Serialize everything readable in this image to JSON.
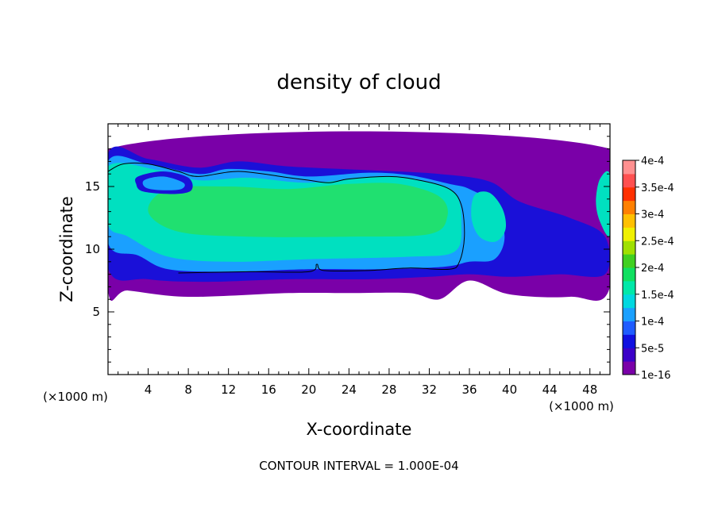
{
  "chart_data": {
    "type": "heatmap",
    "title": "density of cloud",
    "xlabel": "X-coordinate",
    "ylabel": "Z-coordinate",
    "x_unit_label": "(×1000 m)",
    "y_unit_label": "(×1000 m)",
    "xlim": [
      0,
      50
    ],
    "ylim": [
      0,
      20
    ],
    "x_ticks": [
      4,
      8,
      12,
      16,
      20,
      24,
      28,
      32,
      36,
      40,
      44,
      48
    ],
    "y_ticks": [
      5,
      10,
      15
    ],
    "footer": "CONTOUR INTERVAL = 1.000E-04",
    "colorbar": {
      "labels": [
        {
          "text": "4e-4",
          "value": 0.0004
        },
        {
          "text": "3.5e-4",
          "value": 0.00035
        },
        {
          "text": "3e-4",
          "value": 0.0003
        },
        {
          "text": "2.5e-4",
          "value": 0.00025
        },
        {
          "text": "2e-4",
          "value": 0.0002
        },
        {
          "text": "1.5e-4",
          "value": 0.00015
        },
        {
          "text": "1e-4",
          "value": 0.0001
        },
        {
          "text": "5e-5",
          "value": 5e-05
        },
        {
          "text": "1e-16",
          "value": 1e-16
        }
      ],
      "colors": [
        "#7a00a8",
        "#3b00c8",
        "#1010e0",
        "#1f5cff",
        "#1aa0ff",
        "#00d8e0",
        "#00e8a8",
        "#10e060",
        "#40d020",
        "#a0e000",
        "#f0f000",
        "#ffc000",
        "#ff8000",
        "#ff3000",
        "#ff5050",
        "#ff9090"
      ]
    },
    "regions": [
      {
        "level": "1e-16",
        "color": "#7a00a8",
        "outline": [
          [
            0,
            18
          ],
          [
            50,
            18
          ],
          [
            50,
            7
          ],
          [
            46,
            6.2
          ],
          [
            40,
            6.4
          ],
          [
            36,
            7.5
          ],
          [
            33,
            6
          ],
          [
            30,
            6.5
          ],
          [
            24,
            6.5
          ],
          [
            18,
            6.5
          ],
          [
            8,
            6.2
          ],
          [
            2,
            6.7
          ],
          [
            0,
            6.7
          ]
        ]
      },
      {
        "level": "5e-5",
        "color": "#1a10d8",
        "outline": [
          [
            0,
            17.6
          ],
          [
            4,
            17.2
          ],
          [
            9,
            16.5
          ],
          [
            13,
            17
          ],
          [
            18,
            16.6
          ],
          [
            26,
            16.3
          ],
          [
            33,
            16
          ],
          [
            38,
            15.4
          ],
          [
            41,
            13.8
          ],
          [
            46,
            12.5
          ],
          [
            49.5,
            11
          ],
          [
            49.5,
            8
          ],
          [
            45,
            8
          ],
          [
            40,
            7.8
          ],
          [
            36,
            8
          ],
          [
            32,
            7.8
          ],
          [
            26,
            7.6
          ],
          [
            18,
            7.6
          ],
          [
            10,
            7.4
          ],
          [
            4,
            7.6
          ],
          [
            0,
            8.5
          ]
        ]
      },
      {
        "level": "1e-4",
        "color": "#1aa0ff",
        "outline": [
          [
            0,
            17
          ],
          [
            4,
            16.8
          ],
          [
            9,
            16
          ],
          [
            12,
            16.4
          ],
          [
            16,
            16.2
          ],
          [
            20,
            15.8
          ],
          [
            26,
            16.1
          ],
          [
            30,
            15.9
          ],
          [
            34,
            15.2
          ],
          [
            36,
            14.8
          ],
          [
            38.5,
            13.5
          ],
          [
            39.5,
            11
          ],
          [
            38.5,
            9.2
          ],
          [
            36,
            9
          ],
          [
            33.5,
            8.6
          ],
          [
            27,
            8.4
          ],
          [
            20,
            8.4
          ],
          [
            12,
            8.2
          ],
          [
            6,
            8.4
          ],
          [
            3,
            9.5
          ],
          [
            0,
            10.5
          ]
        ]
      },
      {
        "level": "1.5e-4",
        "color": "#00e0c0",
        "outline": [
          [
            0,
            16.6
          ],
          [
            5,
            16.3
          ],
          [
            9,
            15.5
          ],
          [
            14,
            15.7
          ],
          [
            20,
            15.3
          ],
          [
            27,
            15.8
          ],
          [
            31,
            15.5
          ],
          [
            34.5,
            14.5
          ],
          [
            35.2,
            12
          ],
          [
            34.5,
            9.8
          ],
          [
            30,
            9.4
          ],
          [
            20,
            9.2
          ],
          [
            12,
            9
          ],
          [
            6,
            9.4
          ],
          [
            2,
            11
          ],
          [
            0,
            12
          ]
        ]
      },
      {
        "level": "2e-4",
        "color": "#20e070",
        "outline": [
          [
            6,
            14.8
          ],
          [
            12,
            15
          ],
          [
            18,
            14.8
          ],
          [
            24,
            15.2
          ],
          [
            29,
            15.2
          ],
          [
            33,
            14.2
          ],
          [
            33.8,
            12.6
          ],
          [
            32,
            11.2
          ],
          [
            24,
            11
          ],
          [
            14,
            11
          ],
          [
            7,
            11.4
          ],
          [
            4,
            13
          ]
        ]
      },
      {
        "level": "1.5e-4",
        "color": "#00e0c0",
        "outline": [
          [
            36.5,
            14.3
          ],
          [
            38,
            14.5
          ],
          [
            39.3,
            13.2
          ],
          [
            39.6,
            11.6
          ],
          [
            38.6,
            10.6
          ],
          [
            37,
            11
          ],
          [
            36.2,
            12.5
          ]
        ]
      },
      {
        "level": "1.5e-4",
        "color": "#00e0c0",
        "outline": [
          [
            49,
            15.6
          ],
          [
            50,
            15.9
          ],
          [
            50,
            11.2
          ],
          [
            49,
            12.2
          ],
          [
            48.6,
            13.8
          ]
        ]
      },
      {
        "level": "5e-5",
        "color": "#1a10d8",
        "outline": [
          [
            3,
            15.8
          ],
          [
            5.5,
            16.2
          ],
          [
            8,
            15.7
          ],
          [
            8.3,
            14.7
          ],
          [
            6.5,
            14.4
          ],
          [
            3.5,
            14.6
          ],
          [
            2.8,
            15.2
          ]
        ]
      },
      {
        "level": "1e-4",
        "color": "#1aa0ff",
        "outline": [
          [
            3.6,
            15.5
          ],
          [
            5.5,
            15.8
          ],
          [
            7.5,
            15.3
          ],
          [
            7.3,
            14.8
          ],
          [
            5.5,
            14.7
          ],
          [
            3.8,
            14.9
          ]
        ]
      }
    ],
    "contour_1e-4": [
      [
        7,
        8.1
      ],
      [
        14,
        8.2
      ],
      [
        20,
        8.2
      ],
      [
        20.8,
        8.8
      ],
      [
        21.5,
        8.3
      ],
      [
        26,
        8.3
      ],
      [
        30,
        8.5
      ],
      [
        34,
        8.4
      ],
      [
        35,
        9
      ],
      [
        35.5,
        11
      ],
      [
        35.2,
        13.5
      ],
      [
        34,
        14.8
      ],
      [
        31,
        15.5
      ],
      [
        28,
        15.8
      ],
      [
        24,
        15.6
      ],
      [
        22,
        15.3
      ],
      [
        20,
        15.5
      ],
      [
        18,
        15.7
      ],
      [
        13,
        16.2
      ],
      [
        9,
        15.8
      ],
      [
        7,
        16.2
      ],
      [
        4,
        16.8
      ],
      [
        1.5,
        16.8
      ],
      [
        0,
        16.2
      ]
    ]
  }
}
